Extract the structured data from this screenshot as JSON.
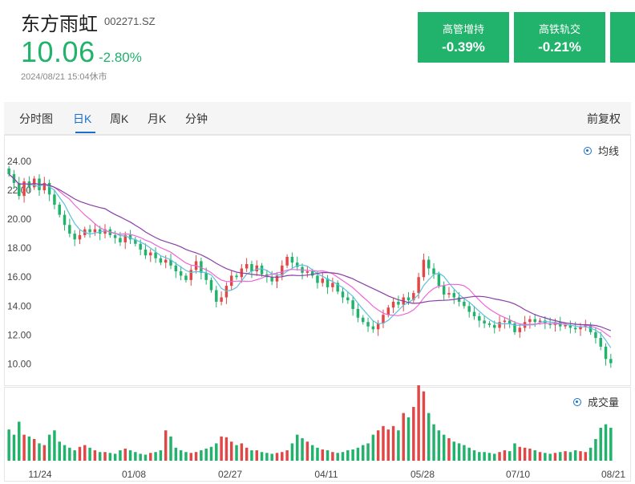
{
  "stock": {
    "name": "东方雨虹",
    "code": "002271.SZ",
    "price": "10.06",
    "change_pct": "-2.80%",
    "timestamp": "2024/08/21 15:04休市"
  },
  "concept_cards": [
    {
      "title": "高管增持",
      "value": "-0.39%"
    },
    {
      "title": "高铁轨交",
      "value": "-0.21%"
    }
  ],
  "tabs": [
    "分时图",
    "日K",
    "周K",
    "月K",
    "分钟"
  ],
  "active_tab": "日K",
  "adjust_label": "前复权",
  "legend_ma": "均线",
  "legend_volume": "成交量",
  "colors": {
    "up": "#e04848",
    "down": "#21b26b",
    "ma5": "#5bc1de",
    "ma10": "#ee66d8",
    "ma20": "#8a3fa6"
  },
  "chart_data": {
    "type": "candlestick",
    "y_ticks": [
      "24.00",
      "22.00",
      "20.00",
      "18.00",
      "16.00",
      "14.00",
      "12.00",
      "10.00"
    ],
    "ylim": [
      9.2,
      24.6
    ],
    "x_ticks": [
      "11/24",
      "01/08",
      "02/27",
      "04/11",
      "05/28",
      "07/10",
      "08/21"
    ],
    "series": [
      {
        "name": "均线"
      },
      {
        "name": "成交量"
      }
    ],
    "closes": [
      23.1,
      22.5,
      21.6,
      22.6,
      22.2,
      22.8,
      22.0,
      22.5,
      21.7,
      21.0,
      20.3,
      19.6,
      19.0,
      18.6,
      18.9,
      19.3,
      19.1,
      19.3,
      19.0,
      19.3,
      18.9,
      18.7,
      18.4,
      18.9,
      18.6,
      18.3,
      17.9,
      17.5,
      17.7,
      17.3,
      17.0,
      17.2,
      16.8,
      16.4,
      16.1,
      15.8,
      16.5,
      17.1,
      16.3,
      15.8,
      15.1,
      14.3,
      14.6,
      15.4,
      16.1,
      16.0,
      16.6,
      16.9,
      16.4,
      16.8,
      16.2,
      16.0,
      15.7,
      16.1,
      16.8,
      17.4,
      17.0,
      16.7,
      16.3,
      16.4,
      16.1,
      15.6,
      15.9,
      15.3,
      15.6,
      15.0,
      14.6,
      14.4,
      13.8,
      13.2,
      12.9,
      12.6,
      12.4,
      12.8,
      13.4,
      13.9,
      14.3,
      14.1,
      14.6,
      14.4,
      14.9,
      16.0,
      17.2,
      16.6,
      16.2,
      15.4,
      14.8,
      14.9,
      14.6,
      14.3,
      14.0,
      13.6,
      13.3,
      13.0,
      12.8,
      12.7,
      12.5,
      12.9,
      13.0,
      12.8,
      12.2,
      12.5,
      12.9,
      13.1,
      12.9,
      13.0,
      12.8,
      12.7,
      12.9,
      12.6,
      12.7,
      12.5,
      12.4,
      12.6,
      12.7,
      12.2,
      11.8,
      11.2,
      10.35,
      10.06
    ],
    "volumes": [
      0.36,
      0.3,
      0.45,
      0.3,
      0.28,
      0.25,
      0.2,
      0.18,
      0.3,
      0.35,
      0.22,
      0.18,
      0.15,
      0.12,
      0.16,
      0.18,
      0.15,
      0.12,
      0.1,
      0.1,
      0.09,
      0.08,
      0.12,
      0.14,
      0.12,
      0.1,
      0.08,
      0.07,
      0.09,
      0.1,
      0.12,
      0.35,
      0.28,
      0.15,
      0.12,
      0.1,
      0.09,
      0.1,
      0.12,
      0.14,
      0.16,
      0.2,
      0.28,
      0.27,
      0.22,
      0.18,
      0.2,
      0.15,
      0.12,
      0.12,
      0.1,
      0.09,
      0.08,
      0.09,
      0.1,
      0.12,
      0.2,
      0.3,
      0.26,
      0.22,
      0.18,
      0.15,
      0.13,
      0.12,
      0.1,
      0.09,
      0.1,
      0.12,
      0.13,
      0.15,
      0.18,
      0.2,
      0.3,
      0.35,
      0.4,
      0.36,
      0.4,
      0.35,
      0.55,
      0.5,
      0.62,
      1.0,
      0.8,
      0.55,
      0.42,
      0.35,
      0.3,
      0.26,
      0.22,
      0.2,
      0.18,
      0.15,
      0.12,
      0.1,
      0.1,
      0.09,
      0.08,
      0.1,
      0.12,
      0.11,
      0.2,
      0.16,
      0.15,
      0.14,
      0.12,
      0.1,
      0.09,
      0.08,
      0.09,
      0.1,
      0.11,
      0.1,
      0.12,
      0.11,
      0.1,
      0.15,
      0.25,
      0.38,
      0.42,
      0.38
    ]
  }
}
